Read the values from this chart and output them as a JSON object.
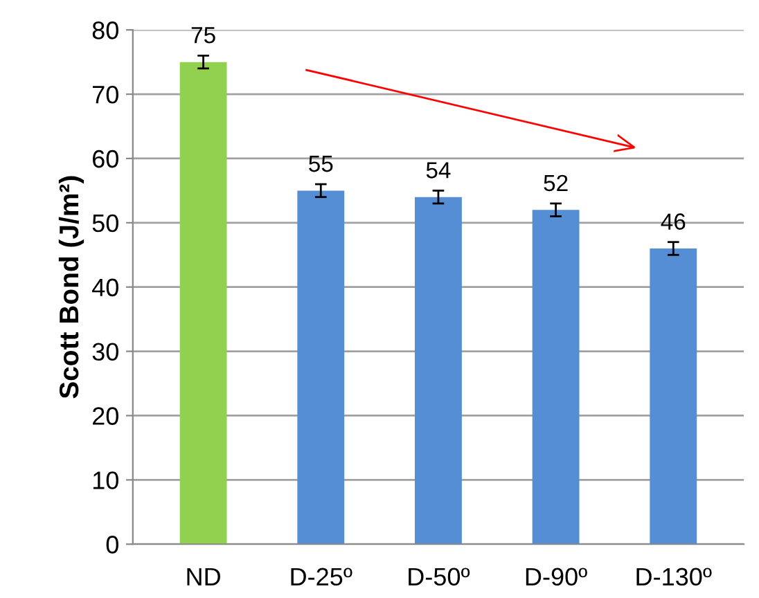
{
  "chart_data": {
    "type": "bar",
    "ylabel": "Scott Bond (J/m²)",
    "categories": [
      "ND",
      "D-25º",
      "D-50º",
      "D-90º",
      "D-130º"
    ],
    "values": [
      75,
      55,
      54,
      52,
      46
    ],
    "colors": [
      "#92d050",
      "#558ed5",
      "#558ed5",
      "#558ed5",
      "#558ed5"
    ],
    "errors": [
      1,
      1,
      1,
      1,
      1
    ],
    "ylim": [
      0,
      80
    ],
    "yticks": [
      0,
      10,
      20,
      30,
      40,
      50,
      60,
      70,
      80
    ],
    "grid": "y",
    "data_labels": true
  }
}
